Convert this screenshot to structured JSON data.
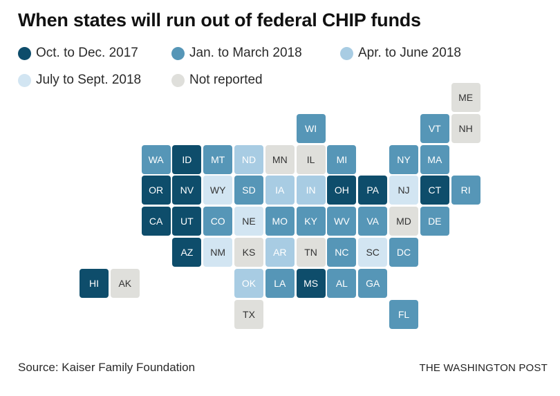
{
  "title": "When states will run out of federal CHIP funds",
  "legend": [
    {
      "key": "q4_2017",
      "label": "Oct. to Dec. 2017",
      "color": "#0e4d6b"
    },
    {
      "key": "q1_2018",
      "label": "Jan. to March 2018",
      "color": "#5696b7"
    },
    {
      "key": "q2_2018",
      "label": "Apr. to June 2018",
      "color": "#a8cce3"
    },
    {
      "key": "q3_2018",
      "label": "July to Sept. 2018",
      "color": "#d2e5f2"
    },
    {
      "key": "none",
      "label": "Not reported",
      "color": "#dfdfdb"
    }
  ],
  "text_colors": {
    "q4_2017": "#ffffff",
    "q1_2018": "#ffffff",
    "q2_2018": "#ffffff",
    "q3_2018": "#333333",
    "none": "#333333"
  },
  "states": [
    {
      "abbr": "ME",
      "category": "none"
    },
    {
      "abbr": "WI",
      "category": "q1_2018"
    },
    {
      "abbr": "VT",
      "category": "q1_2018"
    },
    {
      "abbr": "NH",
      "category": "none"
    },
    {
      "abbr": "WA",
      "category": "q1_2018"
    },
    {
      "abbr": "ID",
      "category": "q4_2017"
    },
    {
      "abbr": "MT",
      "category": "q1_2018"
    },
    {
      "abbr": "ND",
      "category": "q2_2018"
    },
    {
      "abbr": "MN",
      "category": "none"
    },
    {
      "abbr": "IL",
      "category": "none"
    },
    {
      "abbr": "MI",
      "category": "q1_2018"
    },
    {
      "abbr": "NY",
      "category": "q1_2018"
    },
    {
      "abbr": "MA",
      "category": "q1_2018"
    },
    {
      "abbr": "OR",
      "category": "q4_2017"
    },
    {
      "abbr": "NV",
      "category": "q4_2017"
    },
    {
      "abbr": "WY",
      "category": "q3_2018"
    },
    {
      "abbr": "SD",
      "category": "q1_2018"
    },
    {
      "abbr": "IA",
      "category": "q2_2018"
    },
    {
      "abbr": "IN",
      "category": "q2_2018"
    },
    {
      "abbr": "OH",
      "category": "q4_2017"
    },
    {
      "abbr": "PA",
      "category": "q4_2017"
    },
    {
      "abbr": "NJ",
      "category": "q3_2018"
    },
    {
      "abbr": "CT",
      "category": "q4_2017"
    },
    {
      "abbr": "RI",
      "category": "q1_2018"
    },
    {
      "abbr": "CA",
      "category": "q4_2017"
    },
    {
      "abbr": "UT",
      "category": "q4_2017"
    },
    {
      "abbr": "CO",
      "category": "q1_2018"
    },
    {
      "abbr": "NE",
      "category": "q3_2018"
    },
    {
      "abbr": "MO",
      "category": "q1_2018"
    },
    {
      "abbr": "KY",
      "category": "q1_2018"
    },
    {
      "abbr": "WV",
      "category": "q1_2018"
    },
    {
      "abbr": "VA",
      "category": "q1_2018"
    },
    {
      "abbr": "MD",
      "category": "none"
    },
    {
      "abbr": "DE",
      "category": "q1_2018"
    },
    {
      "abbr": "AZ",
      "category": "q4_2017"
    },
    {
      "abbr": "NM",
      "category": "q3_2018"
    },
    {
      "abbr": "KS",
      "category": "none"
    },
    {
      "abbr": "AR",
      "category": "q2_2018"
    },
    {
      "abbr": "TN",
      "category": "none"
    },
    {
      "abbr": "NC",
      "category": "q1_2018"
    },
    {
      "abbr": "SC",
      "category": "q3_2018"
    },
    {
      "abbr": "DC",
      "category": "q1_2018"
    },
    {
      "abbr": "HI",
      "category": "q4_2017"
    },
    {
      "abbr": "AK",
      "category": "none"
    },
    {
      "abbr": "OK",
      "category": "q2_2018"
    },
    {
      "abbr": "LA",
      "category": "q1_2018"
    },
    {
      "abbr": "MS",
      "category": "q4_2017"
    },
    {
      "abbr": "AL",
      "category": "q1_2018"
    },
    {
      "abbr": "GA",
      "category": "q1_2018"
    },
    {
      "abbr": "TX",
      "category": "none"
    },
    {
      "abbr": "FL",
      "category": "q1_2018"
    }
  ],
  "source": "Source: Kaiser Family Foundation",
  "brand": "THE WASHINGTON POST"
}
